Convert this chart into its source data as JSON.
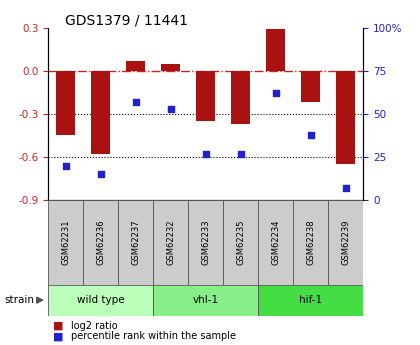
{
  "title": "GDS1379 / 11441",
  "samples": [
    "GSM62231",
    "GSM62236",
    "GSM62237",
    "GSM62232",
    "GSM62233",
    "GSM62235",
    "GSM62234",
    "GSM62238",
    "GSM62239"
  ],
  "log2_ratio": [
    -0.45,
    -0.58,
    0.07,
    0.05,
    -0.35,
    -0.37,
    0.29,
    -0.22,
    -0.65
  ],
  "percentile_rank": [
    20,
    15,
    57,
    53,
    27,
    27,
    62,
    38,
    7
  ],
  "groups": [
    {
      "label": "wild type",
      "start": 0,
      "end": 3,
      "color": "#bbffbb"
    },
    {
      "label": "vhl-1",
      "start": 3,
      "end": 6,
      "color": "#88ee88"
    },
    {
      "label": "hif-1",
      "start": 6,
      "end": 9,
      "color": "#44dd44"
    }
  ],
  "bar_color": "#aa1111",
  "dot_color": "#2222cc",
  "ylim_left": [
    -0.9,
    0.3
  ],
  "ylim_right": [
    0,
    100
  ],
  "yticks_left": [
    -0.9,
    -0.6,
    -0.3,
    0.0,
    0.3
  ],
  "yticks_right": [
    0,
    25,
    50,
    75,
    100
  ],
  "dotted_lines": [
    -0.3,
    -0.6
  ],
  "legend_bar_label": "log2 ratio",
  "legend_dot_label": "percentile rank within the sample",
  "strain_label": "strain"
}
